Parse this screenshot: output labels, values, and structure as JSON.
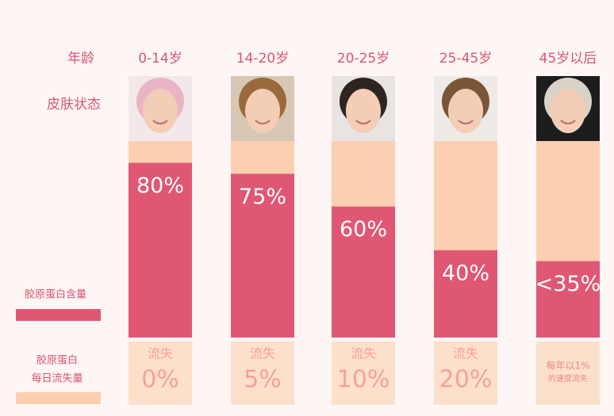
{
  "chart_data": {
    "type": "bar",
    "row_labels": [
      "年龄",
      "皮肤状态"
    ],
    "categories": [
      "0-14岁",
      "14-20岁",
      "20-25岁",
      "25-45岁",
      "45岁以后"
    ],
    "series": [
      {
        "name": "胶原蛋白含量",
        "color": "#e05774",
        "values": [
          80,
          75,
          60,
          40,
          35
        ],
        "value_labels": [
          "80%",
          "75%",
          "60%",
          "40%",
          "<35%"
        ]
      },
      {
        "name": [
          "胶原蛋白",
          "每日流失量"
        ],
        "color": "#fde0cb",
        "caption": "流失",
        "values": [
          0,
          5,
          10,
          20,
          1
        ],
        "value_labels": [
          "0%",
          "5%",
          "10%",
          "20%",
          "每年以1%"
        ],
        "last_note": "的速度流失"
      }
    ],
    "ylim": [
      0,
      90
    ]
  }
}
